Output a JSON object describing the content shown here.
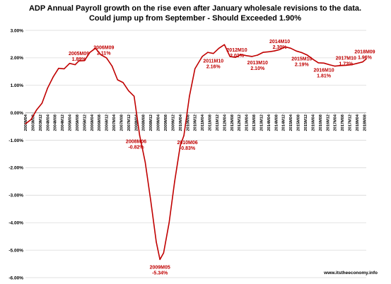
{
  "chart_data": {
    "type": "line",
    "title": "ADP Annual Payroll growth on the rise even after January wholesale revisions to the data.",
    "subtitle": "Could jump up from September - Should Exceeded  1.90%",
    "source": "www.itstheeconomy.info",
    "xlabel": "",
    "ylabel": "",
    "ylim": [
      -6.0,
      3.0
    ],
    "y_ticks": [
      "3.00%",
      "2.00%",
      "1.00%",
      "0.00%",
      "-1.00%",
      "-2.00%",
      "-3.00%",
      "-4.00%",
      "-5.00%",
      "-6.00%"
    ],
    "x_start": "2003M04",
    "x_end": "2018M09",
    "x_ticks": [
      "2003M04",
      "2003M08",
      "2003M12",
      "2004M04",
      "2004M08",
      "2004M12",
      "2005M04",
      "2005M08",
      "2005M12",
      "2006M04",
      "2006M08",
      "2006M12",
      "2007M04",
      "2007M08",
      "2007M12",
      "2008M04",
      "2008M08",
      "2008M12",
      "2009M04",
      "2009M08",
      "2009M12",
      "2010M04",
      "2010M08",
      "2010M12",
      "2011M04",
      "2011M08",
      "2011M12",
      "2012M04",
      "2012M08",
      "2012M12",
      "2013M04",
      "2013M08",
      "2013M12",
      "2014M04",
      "2014M08",
      "2014M12",
      "2015M04",
      "2015M08",
      "2015M12",
      "2016M04",
      "2016M08",
      "2016M12",
      "2017M04",
      "2017M08",
      "2017M12",
      "2018M04",
      "2018M08"
    ],
    "grid": true,
    "line_color": "#c00000",
    "series": [
      {
        "points": [
          [
            "2003M04",
            -0.4
          ],
          [
            "2003M07",
            -0.25
          ],
          [
            "2003M10",
            0.1
          ],
          [
            "2004M01",
            0.35
          ],
          [
            "2004M04",
            0.9
          ],
          [
            "2004M07",
            1.3
          ],
          [
            "2004M10",
            1.62
          ],
          [
            "2005M01",
            1.6
          ],
          [
            "2005M04",
            1.8
          ],
          [
            "2005M07",
            1.75
          ],
          [
            "2005M09",
            1.89
          ],
          [
            "2005M12",
            1.9
          ],
          [
            "2006M03",
            2.2
          ],
          [
            "2006M06",
            2.35
          ],
          [
            "2006M09",
            2.11
          ],
          [
            "2006M12",
            2.0
          ],
          [
            "2007M03",
            1.7
          ],
          [
            "2007M06",
            1.2
          ],
          [
            "2007M09",
            1.1
          ],
          [
            "2007M12",
            0.8
          ],
          [
            "2008M03",
            0.6
          ],
          [
            "2008M06",
            -0.82
          ],
          [
            "2008M09",
            -1.8
          ],
          [
            "2008M12",
            -3.2
          ],
          [
            "2009M03",
            -4.7
          ],
          [
            "2009M05",
            -5.34
          ],
          [
            "2009M07",
            -5.1
          ],
          [
            "2009M10",
            -4.0
          ],
          [
            "2010M01",
            -2.5
          ],
          [
            "2010M04",
            -1.2
          ],
          [
            "2010M06",
            -0.83
          ],
          [
            "2010M09",
            0.6
          ],
          [
            "2010M12",
            1.6
          ],
          [
            "2011M04",
            2.05
          ],
          [
            "2011M07",
            2.2
          ],
          [
            "2011M10",
            2.16
          ],
          [
            "2012M01",
            2.35
          ],
          [
            "2012M04",
            2.48
          ],
          [
            "2012M07",
            2.05
          ],
          [
            "2012M10",
            2.02
          ],
          [
            "2013M01",
            2.12
          ],
          [
            "2013M04",
            2.08
          ],
          [
            "2013M07",
            2.05
          ],
          [
            "2013M10",
            2.1
          ],
          [
            "2014M01",
            2.2
          ],
          [
            "2014M04",
            2.22
          ],
          [
            "2014M07",
            2.25
          ],
          [
            "2014M10",
            2.3
          ],
          [
            "2015M01",
            2.4
          ],
          [
            "2015M04",
            2.35
          ],
          [
            "2015M07",
            2.25
          ],
          [
            "2015M10",
            2.19
          ],
          [
            "2016M01",
            2.1
          ],
          [
            "2016M04",
            1.95
          ],
          [
            "2016M07",
            1.82
          ],
          [
            "2016M10",
            1.81
          ],
          [
            "2017M01",
            1.75
          ],
          [
            "2017M04",
            1.7
          ],
          [
            "2017M07",
            1.72
          ],
          [
            "2017M10",
            1.73
          ],
          [
            "2018M01",
            1.75
          ],
          [
            "2018M04",
            1.8
          ],
          [
            "2018M07",
            1.85
          ],
          [
            "2018M09",
            1.96
          ]
        ]
      }
    ],
    "annotations": [
      {
        "label": "2005M09",
        "value": "1.89%",
        "x": "2005M09",
        "y": 1.89
      },
      {
        "label": "2006M09",
        "value": "2.11%",
        "x": "2006M09",
        "y": 2.11
      },
      {
        "label": "2008M06",
        "value": "-0.82%",
        "x": "2008M06",
        "y": -0.82
      },
      {
        "label": "2009M05",
        "value": "-5.34%",
        "x": "2009M05",
        "y": -5.34
      },
      {
        "label": "2010M06",
        "value": "-0.83%",
        "x": "2010M06",
        "y": -0.83
      },
      {
        "label": "2011M10",
        "value": "2.16%",
        "x": "2011M10",
        "y": 2.16
      },
      {
        "label": "2012M10",
        "value": "2.02%",
        "x": "2012M10",
        "y": 2.02
      },
      {
        "label": "2013M10",
        "value": "2.10%",
        "x": "2013M10",
        "y": 2.1
      },
      {
        "label": "2014M10",
        "value": "2.30%",
        "x": "2014M10",
        "y": 2.3
      },
      {
        "label": "2015M10",
        "value": "2.19%",
        "x": "2015M10",
        "y": 2.19
      },
      {
        "label": "2016M10",
        "value": "1.81%",
        "x": "2016M10",
        "y": 1.81
      },
      {
        "label": "2017M10",
        "value": "1.73%",
        "x": "2017M10",
        "y": 1.73
      },
      {
        "label": "2018M09",
        "value": "1.96%",
        "x": "2018M09",
        "y": 1.96
      }
    ]
  }
}
